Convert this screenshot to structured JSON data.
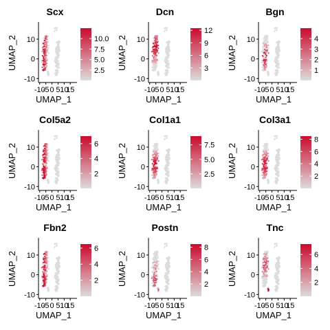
{
  "colors": {
    "low": "#dcdcdc",
    "high": "#cc0a2e",
    "axis": "#000000",
    "background": "#ffffff"
  },
  "shared_axes": {
    "xlabel": "UMAP_1",
    "ylabel": "UMAP_2",
    "xtick_labels": [
      "-10",
      "-5",
      "0",
      "5",
      "10",
      "15"
    ],
    "ytick_labels": [
      "-10",
      "0",
      "10"
    ]
  },
  "chart_data": [
    {
      "type": "scatter",
      "title": "Scx",
      "xlabel": "UMAP_1",
      "ylabel": "UMAP_2",
      "xlim": [
        -11,
        16
      ],
      "ylim": [
        -12,
        18
      ],
      "colorbar_ticks": [
        2.5,
        5.0,
        7.5,
        10.0
      ],
      "colorbar_labels": [
        "2.5",
        "5.0",
        "7.5",
        "10.0"
      ],
      "value_range": [
        0,
        12.5
      ],
      "expression": "medium",
      "hotspot": "left-edge"
    },
    {
      "type": "scatter",
      "title": "Dcn",
      "xlabel": "UMAP_1",
      "ylabel": "UMAP_2",
      "xlim": [
        -11,
        16
      ],
      "ylim": [
        -12,
        18
      ],
      "colorbar_ticks": [
        3,
        6,
        9,
        12
      ],
      "colorbar_labels": [
        "3",
        "6",
        "9",
        "12"
      ],
      "value_range": [
        0,
        12.5
      ],
      "expression": "high",
      "hotspot": "upper-left"
    },
    {
      "type": "scatter",
      "title": "Bgn",
      "xlabel": "UMAP_1",
      "ylabel": "UMAP_2",
      "xlim": [
        -11,
        16
      ],
      "ylim": [
        -12,
        18
      ],
      "colorbar_ticks": [
        1,
        2,
        3,
        4
      ],
      "colorbar_labels": [
        "1",
        "2",
        "3",
        "4"
      ],
      "value_range": [
        0,
        5
      ],
      "expression": "sparse",
      "hotspot": "center"
    },
    {
      "type": "scatter",
      "title": "Col5a2",
      "xlabel": "UMAP_1",
      "ylabel": "UMAP_2",
      "xlim": [
        -11,
        16
      ],
      "ylim": [
        -12,
        18
      ],
      "colorbar_ticks": [
        2,
        4,
        6
      ],
      "colorbar_labels": [
        "2",
        "4",
        "6"
      ],
      "value_range": [
        0,
        7
      ],
      "expression": "high",
      "hotspot": "left-edge"
    },
    {
      "type": "scatter",
      "title": "Col1a1",
      "xlabel": "UMAP_1",
      "ylabel": "UMAP_2",
      "xlim": [
        -11,
        16
      ],
      "ylim": [
        -12,
        18
      ],
      "colorbar_ticks": [
        2.5,
        5.0,
        7.5
      ],
      "colorbar_labels": [
        "2.5",
        "5.0",
        "7.5"
      ],
      "value_range": [
        0,
        9
      ],
      "expression": "high",
      "hotspot": "center"
    },
    {
      "type": "scatter",
      "title": "Col3a1",
      "xlabel": "UMAP_1",
      "ylabel": "UMAP_2",
      "xlim": [
        -11,
        16
      ],
      "ylim": [
        -12,
        18
      ],
      "colorbar_ticks": [
        2,
        4,
        6,
        8
      ],
      "colorbar_labels": [
        "2",
        "4",
        "6",
        "8"
      ],
      "value_range": [
        0,
        8.5
      ],
      "expression": "high",
      "hotspot": "center"
    },
    {
      "type": "scatter",
      "title": "Fbn2",
      "xlabel": "UMAP_1",
      "ylabel": "UMAP_2",
      "xlim": [
        -11,
        16
      ],
      "ylim": [
        -12,
        18
      ],
      "colorbar_ticks": [
        2,
        4,
        6
      ],
      "colorbar_labels": [
        "2",
        "4",
        "6"
      ],
      "value_range": [
        0,
        6.5
      ],
      "expression": "medium",
      "hotspot": "left-edge"
    },
    {
      "type": "scatter",
      "title": "Postn",
      "xlabel": "UMAP_1",
      "ylabel": "UMAP_2",
      "xlim": [
        -11,
        16
      ],
      "ylim": [
        -12,
        18
      ],
      "colorbar_ticks": [
        2,
        4,
        6,
        8
      ],
      "colorbar_labels": [
        "2",
        "4",
        "6",
        "8"
      ],
      "value_range": [
        0,
        8.5
      ],
      "expression": "sparse",
      "hotspot": "lower-left"
    },
    {
      "type": "scatter",
      "title": "Tnc",
      "xlabel": "UMAP_1",
      "ylabel": "UMAP_2",
      "xlim": [
        -11,
        16
      ],
      "ylim": [
        -12,
        18
      ],
      "colorbar_ticks": [
        2,
        4,
        6
      ],
      "colorbar_labels": [
        "2",
        "4",
        "6"
      ],
      "value_range": [
        0,
        7.5
      ],
      "expression": "medium",
      "hotspot": "bottom-tip"
    }
  ]
}
